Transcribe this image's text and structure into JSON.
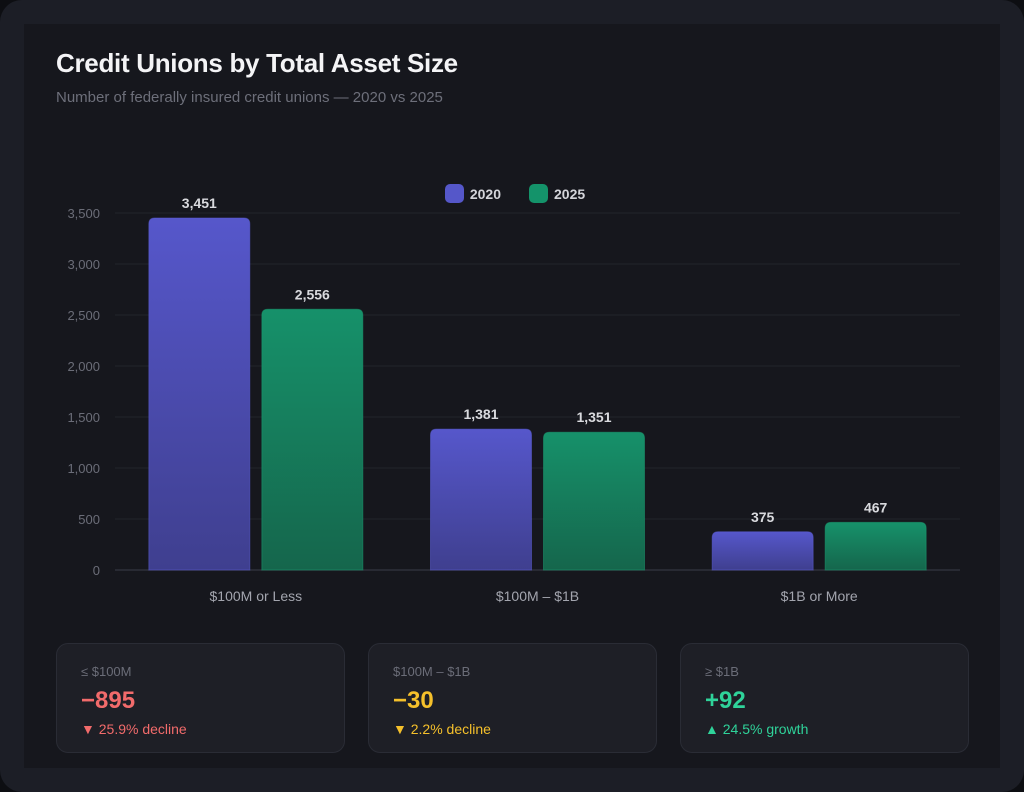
{
  "header": {
    "title": "Credit Unions by Total Asset Size",
    "subtitle": "Number of federally insured credit unions — 2020 vs 2025"
  },
  "colors": {
    "series_2020": "#5557c9",
    "series_2025": "#14936a",
    "negative": "#f26b6b",
    "warning": "#f5c02b",
    "positive": "#2fd39a"
  },
  "chart_data": {
    "type": "bar",
    "title": "Credit Unions by Total Asset Size",
    "subtitle": "Number of federally insured credit unions — 2020 vs 2025",
    "categories": [
      "$100M or Less",
      "$100M – $1B",
      "$1B or More"
    ],
    "series": [
      {
        "name": "2020",
        "values": [
          3451,
          1381,
          375
        ],
        "labels": [
          "3,451",
          "1,381",
          "375"
        ]
      },
      {
        "name": "2025",
        "values": [
          2556,
          1351,
          467
        ],
        "labels": [
          "2,556",
          "1,351",
          "467"
        ]
      }
    ],
    "yticks": [
      0,
      500,
      1000,
      1500,
      2000,
      2500,
      3000,
      3500
    ],
    "ytick_labels": [
      "0",
      "500",
      "1,000",
      "1,500",
      "2,000",
      "2,500",
      "3,000",
      "3,500"
    ],
    "ylim": [
      0,
      3500
    ],
    "xlabel": "",
    "ylabel": "",
    "grid": true,
    "legend_position": "top-center"
  },
  "stats": [
    {
      "label": "≤ $100M",
      "value": "−895",
      "note": "▼ 25.9% decline",
      "tone": "negative"
    },
    {
      "label": "$100M – $1B",
      "value": "−30",
      "note": "▼ 2.2% decline",
      "tone": "warning"
    },
    {
      "label": "≥ $1B",
      "value": "+92",
      "note": "▲ 24.5% growth",
      "tone": "positive"
    }
  ]
}
